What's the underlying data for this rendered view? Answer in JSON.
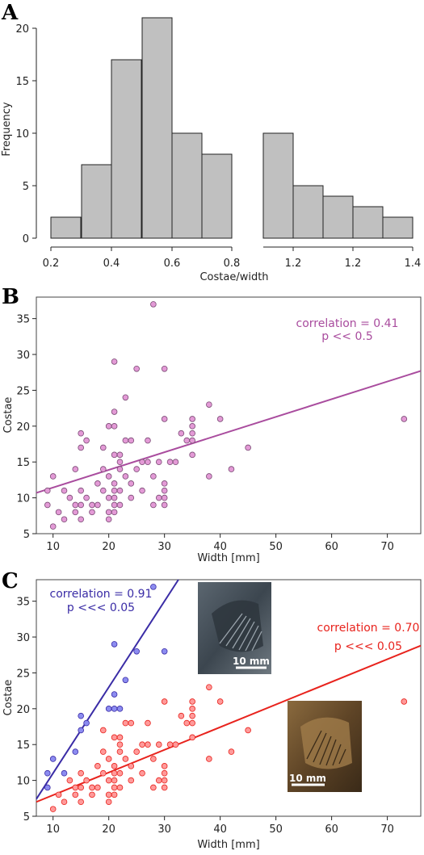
{
  "chart_data": [
    {
      "panel": "A",
      "type": "bar",
      "categories": [
        "0.2–0.3",
        "0.3–0.4",
        "0.4–0.5",
        "0.5–0.6",
        "0.6–0.7",
        "0.7–0.8",
        "1.0–1.1",
        "1.1–1.2",
        "1.2–1.3",
        "1.3–1.4",
        "1.4–1.5"
      ],
      "values": [
        2,
        7,
        17,
        21,
        10,
        8,
        10,
        5,
        4,
        3,
        2
      ],
      "xlabel": "Costae/width",
      "ylabel": "Frequency",
      "xticks": [
        "0.2",
        "0.4",
        "0.6",
        "0.8",
        "1.2",
        "1.2",
        "1.4"
      ],
      "yticks": [
        "0",
        "5",
        "10",
        "15",
        "20"
      ],
      "ylim": [
        0,
        21
      ],
      "bar_color": "#c0c0c0"
    },
    {
      "panel": "B",
      "type": "scatter",
      "xlabel": "Width [mm]",
      "ylabel": "Costae",
      "xlim": [
        7,
        76
      ],
      "ylim": [
        5,
        38
      ],
      "xticks": [
        "10",
        "20",
        "30",
        "40",
        "50",
        "60",
        "70"
      ],
      "yticks": [
        "5",
        "10",
        "15",
        "20",
        "25",
        "30",
        "35"
      ],
      "point_color": "#e39ad6",
      "line_color": "#a94c9e",
      "annotation": [
        "correlation = 0.41",
        "p << 0.5"
      ],
      "regression": {
        "x": [
          7,
          76
        ],
        "y": [
          10.7,
          27.7
        ]
      },
      "points": [
        [
          9,
          11
        ],
        [
          9,
          9
        ],
        [
          10,
          13
        ],
        [
          10,
          6
        ],
        [
          11,
          8
        ],
        [
          12,
          11
        ],
        [
          12,
          7
        ],
        [
          13,
          10
        ],
        [
          14,
          14
        ],
        [
          14,
          9
        ],
        [
          14,
          8
        ],
        [
          15,
          19
        ],
        [
          15,
          17
        ],
        [
          15,
          11
        ],
        [
          15,
          9
        ],
        [
          15,
          7
        ],
        [
          16,
          18
        ],
        [
          16,
          10
        ],
        [
          17,
          8
        ],
        [
          17,
          9
        ],
        [
          18,
          12
        ],
        [
          18,
          9
        ],
        [
          19,
          11
        ],
        [
          19,
          17
        ],
        [
          19,
          14
        ],
        [
          20,
          20
        ],
        [
          20,
          13
        ],
        [
          20,
          10
        ],
        [
          20,
          8
        ],
        [
          20,
          7
        ],
        [
          21,
          29
        ],
        [
          21,
          22
        ],
        [
          21,
          20
        ],
        [
          21,
          16
        ],
        [
          21,
          12
        ],
        [
          21,
          11
        ],
        [
          21,
          10
        ],
        [
          21,
          9
        ],
        [
          21,
          8
        ],
        [
          22,
          16
        ],
        [
          22,
          14
        ],
        [
          22,
          11
        ],
        [
          22,
          9
        ],
        [
          22,
          15
        ],
        [
          23,
          24
        ],
        [
          23,
          18
        ],
        [
          23,
          13
        ],
        [
          24,
          18
        ],
        [
          24,
          12
        ],
        [
          24,
          10
        ],
        [
          25,
          28
        ],
        [
          25,
          14
        ],
        [
          26,
          15
        ],
        [
          26,
          11
        ],
        [
          27,
          18
        ],
        [
          27,
          15
        ],
        [
          28,
          37
        ],
        [
          28,
          13
        ],
        [
          28,
          9
        ],
        [
          29,
          15
        ],
        [
          29,
          10
        ],
        [
          30,
          28
        ],
        [
          30,
          21
        ],
        [
          30,
          12
        ],
        [
          30,
          11
        ],
        [
          30,
          10
        ],
        [
          30,
          9
        ],
        [
          31,
          15
        ],
        [
          32,
          15
        ],
        [
          33,
          19
        ],
        [
          34,
          18
        ],
        [
          35,
          21
        ],
        [
          35,
          20
        ],
        [
          35,
          19
        ],
        [
          35,
          18
        ],
        [
          35,
          16
        ],
        [
          38,
          13
        ],
        [
          38,
          23
        ],
        [
          40,
          21
        ],
        [
          42,
          14
        ],
        [
          45,
          17
        ],
        [
          73,
          21
        ]
      ]
    },
    {
      "panel": "C",
      "type": "scatter",
      "xlabel": "Width [mm]",
      "ylabel": "Costae",
      "xlim": [
        7,
        76
      ],
      "ylim": [
        5,
        38
      ],
      "xticks": [
        "10",
        "20",
        "30",
        "40",
        "50",
        "60",
        "70"
      ],
      "yticks": [
        "5",
        "10",
        "15",
        "20",
        "25",
        "30",
        "35"
      ],
      "series": [
        {
          "color": "#8c8cf0",
          "line_color": "#3a2ca6",
          "annotation": [
            "correlation = 0.91",
            "p <<< 0.05"
          ],
          "regression": {
            "x": [
              7,
              32.5
            ],
            "y": [
              7.4,
              38
            ]
          },
          "points": [
            [
              9,
              9
            ],
            [
              9,
              11
            ],
            [
              10,
              13
            ],
            [
              12,
              11
            ],
            [
              14,
              14
            ],
            [
              15,
              17
            ],
            [
              15,
              19
            ],
            [
              16,
              18
            ],
            [
              20,
              20
            ],
            [
              21,
              20
            ],
            [
              21,
              22
            ],
            [
              21,
              29
            ],
            [
              22,
              20
            ],
            [
              23,
              24
            ],
            [
              25,
              28
            ],
            [
              28,
              37
            ],
            [
              30,
              28
            ]
          ]
        },
        {
          "color": "#ff9a9a",
          "line_color": "#e8231d",
          "annotation": [
            "correlation = 0.70",
            "p <<< 0.05"
          ],
          "regression": {
            "x": [
              7,
              76
            ],
            "y": [
              7.0,
              28.8
            ]
          },
          "points": [
            [
              10,
              6
            ],
            [
              11,
              8
            ],
            [
              12,
              7
            ],
            [
              13,
              10
            ],
            [
              14,
              9
            ],
            [
              14,
              8
            ],
            [
              15,
              11
            ],
            [
              15,
              9
            ],
            [
              15,
              7
            ],
            [
              16,
              10
            ],
            [
              17,
              8
            ],
            [
              17,
              9
            ],
            [
              18,
              12
            ],
            [
              18,
              9
            ],
            [
              19,
              14
            ],
            [
              19,
              11
            ],
            [
              19,
              17
            ],
            [
              20,
              13
            ],
            [
              20,
              10
            ],
            [
              20,
              8
            ],
            [
              20,
              7
            ],
            [
              21,
              16
            ],
            [
              21,
              12
            ],
            [
              21,
              11
            ],
            [
              21,
              10
            ],
            [
              21,
              9
            ],
            [
              21,
              8
            ],
            [
              22,
              16
            ],
            [
              22,
              14
            ],
            [
              22,
              11
            ],
            [
              22,
              9
            ],
            [
              22,
              15
            ],
            [
              23,
              18
            ],
            [
              23,
              13
            ],
            [
              24,
              18
            ],
            [
              24,
              12
            ],
            [
              24,
              10
            ],
            [
              25,
              14
            ],
            [
              26,
              15
            ],
            [
              26,
              11
            ],
            [
              27,
              18
            ],
            [
              27,
              15
            ],
            [
              28,
              13
            ],
            [
              28,
              9
            ],
            [
              29,
              15
            ],
            [
              29,
              10
            ],
            [
              30,
              21
            ],
            [
              30,
              12
            ],
            [
              30,
              11
            ],
            [
              30,
              10
            ],
            [
              30,
              9
            ],
            [
              31,
              15
            ],
            [
              32,
              15
            ],
            [
              33,
              19
            ],
            [
              34,
              18
            ],
            [
              35,
              21
            ],
            [
              35,
              20
            ],
            [
              35,
              19
            ],
            [
              35,
              18
            ],
            [
              35,
              16
            ],
            [
              38,
              13
            ],
            [
              38,
              23
            ],
            [
              40,
              21
            ],
            [
              42,
              14
            ],
            [
              45,
              17
            ],
            [
              73,
              21
            ]
          ]
        }
      ],
      "insets": [
        "10 mm",
        "10 mm"
      ]
    }
  ],
  "panel_letters": [
    "A",
    "B",
    "C"
  ]
}
